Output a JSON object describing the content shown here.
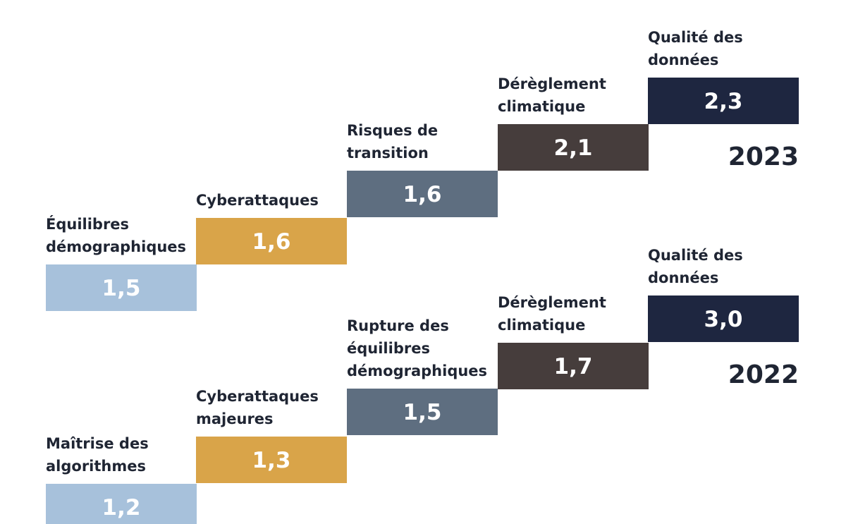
{
  "chart_data": [
    {
      "type": "bar",
      "year": "2023",
      "categories": [
        [
          "Équilibres",
          "démographiques"
        ],
        [
          "Cyberattaques"
        ],
        [
          "Risques de",
          "transition"
        ],
        [
          "Dérèglement",
          "climatique"
        ],
        [
          "Qualité des",
          "données"
        ]
      ],
      "values": [
        1.5,
        1.6,
        1.6,
        2.1,
        2.3
      ],
      "value_labels": [
        "1,5",
        "1,6",
        "1,6",
        "2,1",
        "2,3"
      ]
    },
    {
      "type": "bar",
      "year": "2022",
      "categories": [
        [
          "Maîtrise des",
          "algorithmes"
        ],
        [
          "Cyberattaques",
          "majeures"
        ],
        [
          "Rupture des",
          "équilibres",
          "démographiques"
        ],
        [
          "Dérèglement",
          "climatique"
        ],
        [
          "Qualité des",
          "données"
        ]
      ],
      "values": [
        1.2,
        1.3,
        1.5,
        1.7,
        3.0
      ],
      "value_labels": [
        "1,2",
        "1,3",
        "1,5",
        "1,7",
        "3,0"
      ]
    }
  ],
  "colors": [
    "#a7c1db",
    "#d9a449",
    "#5e6e80",
    "#463d3c",
    "#1e2640"
  ]
}
